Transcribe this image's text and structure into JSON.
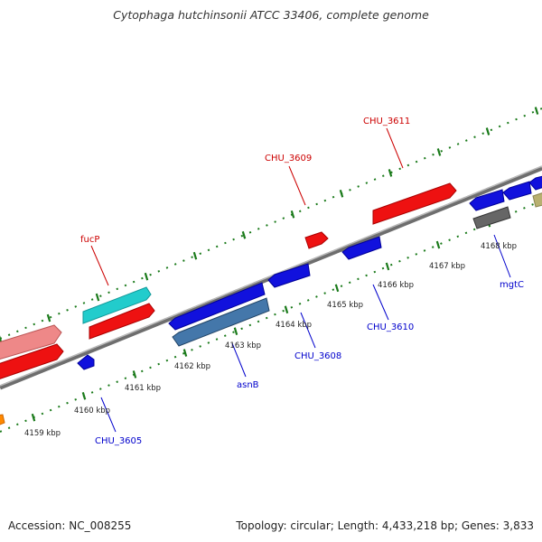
{
  "title": "Cytophaga hutchinsonii ATCC 33406, complete genome",
  "footer": {
    "accession": "Accession: NC_008255",
    "summary": "Topology: circular; Length: 4,433,218 bp; Genes: 3,833"
  },
  "colors": {
    "backbone": "#8a8a8a",
    "tick": "#1a7a1a",
    "forward_label": "#cc0000",
    "reverse_label": "#0000cc",
    "red": "#ee1111",
    "pink": "#ee8888",
    "cyan": "#22cccc",
    "blue": "#1111dd",
    "steelblue": "#4477aa",
    "gray": "#666666",
    "olive": "#b8b070",
    "orange": "#ff8800"
  },
  "scale_labels": [
    "4159 kbp",
    "4160 kbp",
    "4161 kbp",
    "4162 kbp",
    "4163 kbp",
    "4164 kbp",
    "4165 kbp",
    "4166 kbp",
    "4167 kbp",
    "4168 kbp"
  ],
  "gene_labels": {
    "forward": [
      "fucP",
      "CHU_3609",
      "CHU_3611"
    ],
    "reverse": [
      "CHU_3605",
      "asnB",
      "CHU_3608",
      "CHU_3610",
      "mgtC"
    ]
  }
}
